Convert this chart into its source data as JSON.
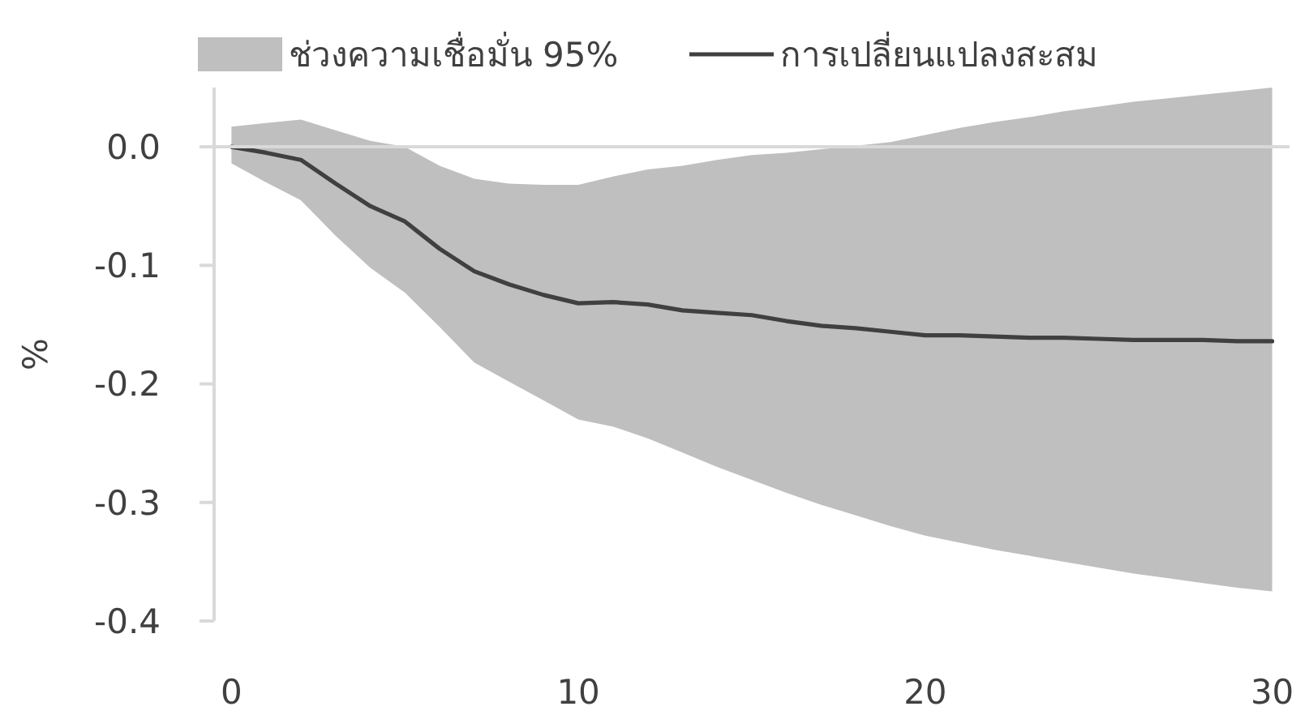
{
  "chart_data": {
    "type": "line",
    "ylabel": "%",
    "x": [
      0,
      1,
      2,
      3,
      4,
      5,
      6,
      7,
      8,
      9,
      10,
      11,
      12,
      13,
      14,
      15,
      16,
      17,
      18,
      19,
      20,
      21,
      22,
      23,
      24,
      25,
      26,
      27,
      28,
      29,
      30
    ],
    "xlim": [
      -0.5,
      30.5
    ],
    "xticks": [
      0,
      10,
      20,
      30
    ],
    "ylim": [
      -0.4,
      0.05
    ],
    "yticks": [
      -0.4,
      -0.3,
      -0.2,
      -0.1,
      {
        "value": 0,
        "label": "0.0"
      }
    ],
    "legend": "top",
    "marker": "none",
    "line_style": "solid",
    "ref_lines": [
      {
        "axis": "y",
        "value": 0,
        "color": "#d9d9d9"
      }
    ],
    "series": [
      {
        "name": "ช่วงความเชื่อมั่น 95%",
        "type": "area",
        "color": "#bfbfbf",
        "values": [
          null,
          null,
          null,
          null,
          null,
          null,
          null,
          null,
          null,
          null,
          null,
          null,
          null,
          null,
          null,
          null,
          null,
          null,
          null,
          null,
          null,
          null,
          null,
          null,
          null,
          null,
          null,
          null,
          null,
          null,
          null
        ],
        "lower": [
          -0.014,
          -0.03,
          -0.045,
          -0.075,
          -0.102,
          -0.123,
          -0.152,
          -0.182,
          -0.198,
          -0.214,
          -0.23,
          -0.236,
          -0.246,
          -0.258,
          -0.27,
          -0.281,
          -0.292,
          -0.302,
          -0.311,
          -0.32,
          -0.328,
          -0.334,
          -0.34,
          -0.345,
          -0.35,
          -0.355,
          -0.36,
          -0.364,
          -0.368,
          -0.372,
          -0.375
        ],
        "upper": [
          0.017,
          0.02,
          0.023,
          0.014,
          0.005,
          0.0,
          -0.016,
          -0.027,
          -0.031,
          -0.032,
          -0.032,
          -0.025,
          -0.019,
          -0.016,
          -0.011,
          -0.007,
          -0.005,
          -0.002,
          0.001,
          0.004,
          0.01,
          0.016,
          0.021,
          0.025,
          0.03,
          0.034,
          0.038,
          0.041,
          0.044,
          0.047,
          0.05
        ]
      },
      {
        "name": "การเปลี่ยนแปลงสะสม",
        "color": "#404040",
        "values": [
          0.0,
          -0.005,
          -0.011,
          -0.031,
          -0.05,
          -0.063,
          -0.086,
          -0.105,
          -0.116,
          -0.125,
          -0.132,
          -0.131,
          -0.133,
          -0.138,
          -0.14,
          -0.142,
          -0.147,
          -0.151,
          -0.153,
          -0.156,
          -0.159,
          -0.159,
          -0.16,
          -0.161,
          -0.161,
          -0.162,
          -0.163,
          -0.163,
          -0.163,
          -0.164,
          -0.164
        ]
      }
    ]
  }
}
